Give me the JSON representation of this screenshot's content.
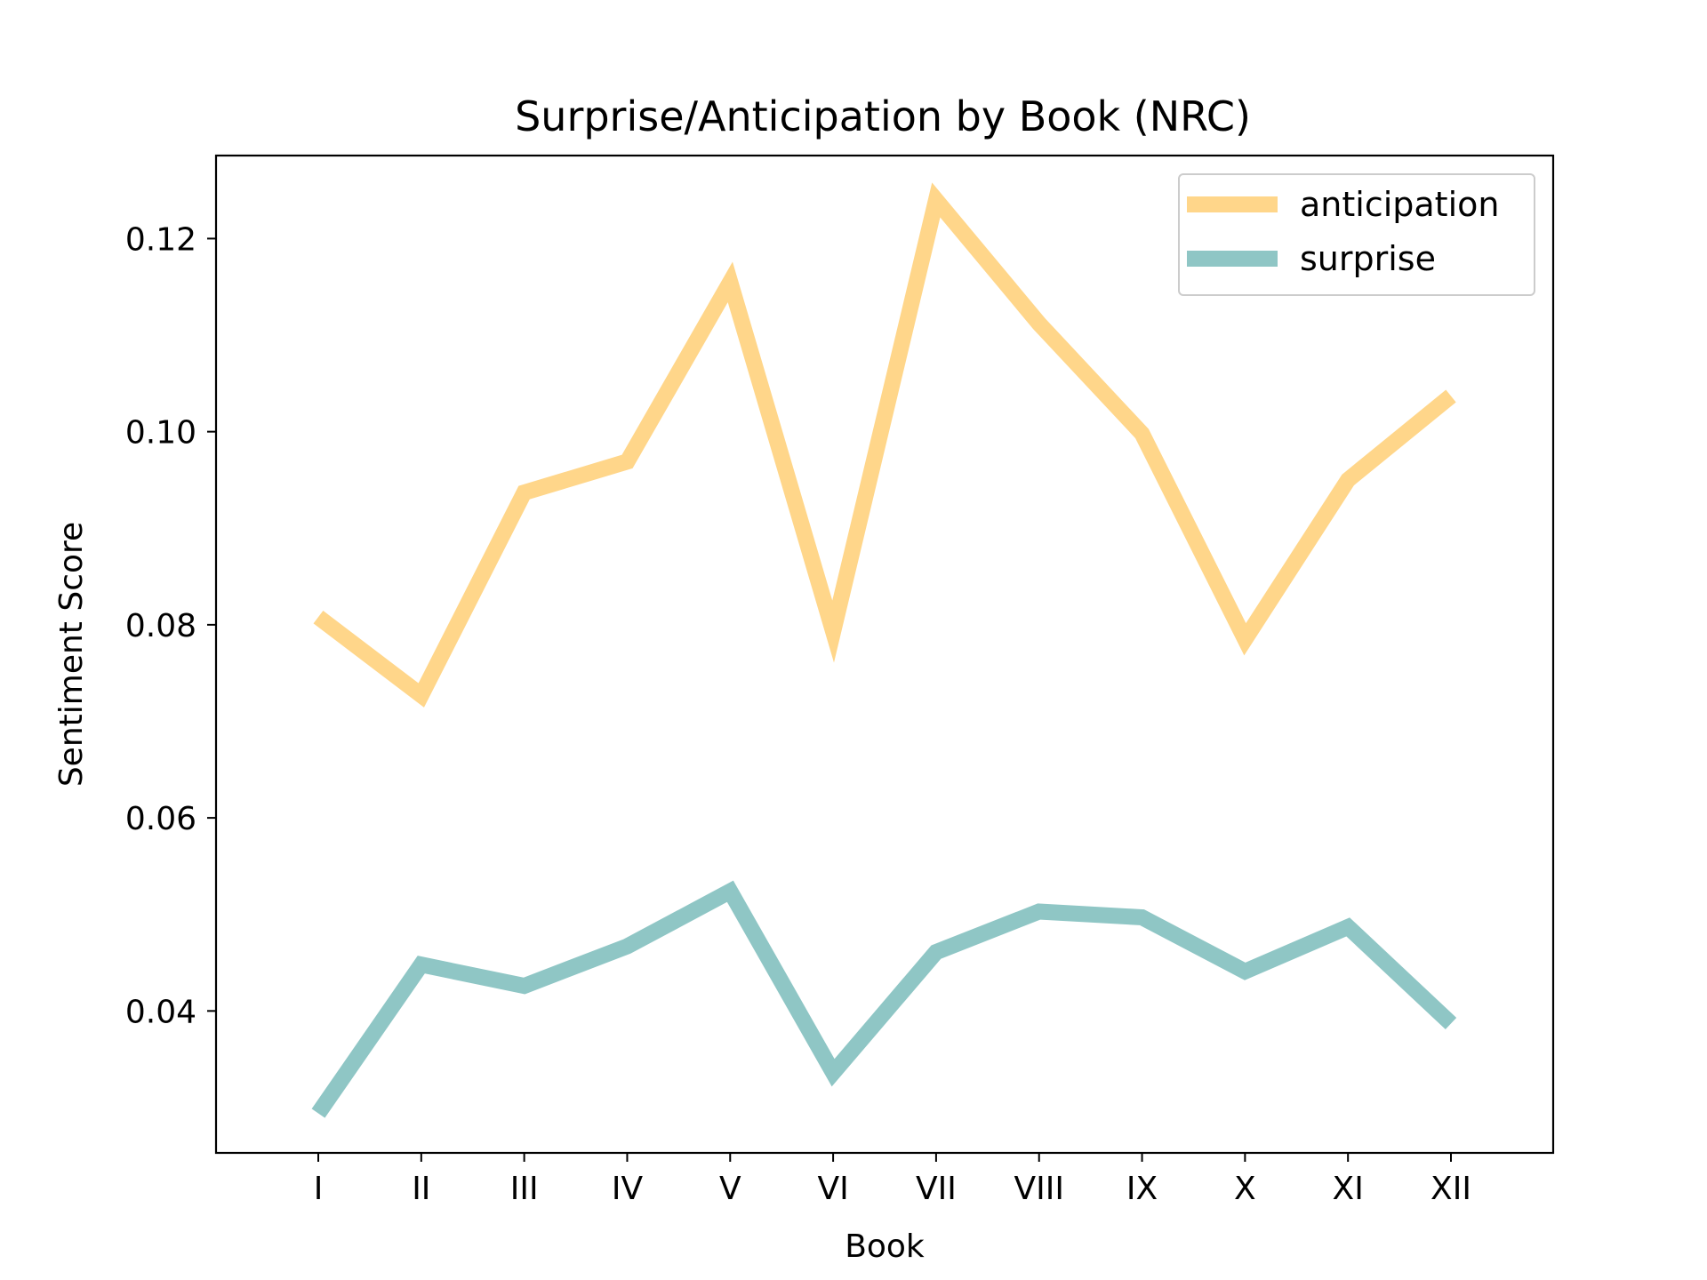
{
  "chart_data": {
    "type": "line",
    "title": "Surprise/Anticipation by Book (NRC)",
    "xlabel": "Book",
    "ylabel": "Sentiment Score",
    "categories": [
      "I",
      "II",
      "III",
      "IV",
      "V",
      "VI",
      "VII",
      "VIII",
      "IX",
      "X",
      "XI",
      "XII"
    ],
    "y_ticks": [
      "0.04",
      "0.06",
      "0.08",
      "0.10",
      "0.12"
    ],
    "ylim": [
      0.0253,
      0.1286
    ],
    "grid": false,
    "legend_position": "upper right",
    "series": [
      {
        "name": "anticipation",
        "color": "#FFD68A",
        "values": [
          0.0808,
          0.0727,
          0.0937,
          0.0969,
          0.1155,
          0.0793,
          0.124,
          0.1112,
          0.0998,
          0.0785,
          0.095,
          0.1037
        ]
      },
      {
        "name": "surprise",
        "color": "#8FC6C5",
        "values": [
          0.0294,
          0.0448,
          0.0426,
          0.0467,
          0.0524,
          0.0336,
          0.0461,
          0.0503,
          0.0497,
          0.0441,
          0.0487,
          0.0387
        ]
      }
    ]
  }
}
